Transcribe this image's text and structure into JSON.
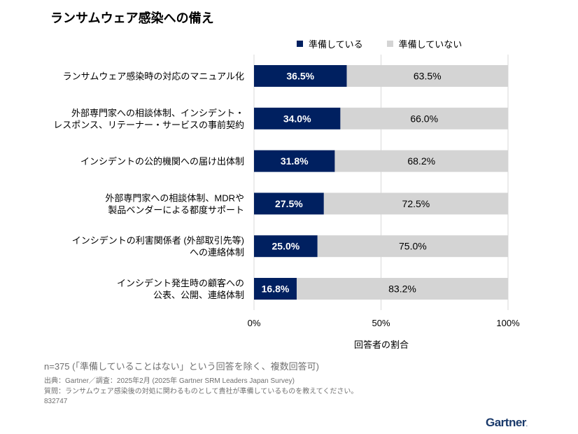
{
  "title": "ランサムウェア感染への備え",
  "legend": [
    {
      "label": "準備している",
      "color": "#002060"
    },
    {
      "label": "準備していない",
      "color": "#d4d4d4"
    }
  ],
  "chart_data": {
    "type": "bar",
    "orientation": "horizontal",
    "stacked": true,
    "title": "ランサムウェア感染への備え",
    "categories": [
      [
        "ランサムウェア感染時の対応のマニュアル化"
      ],
      [
        "外部専門家への相談体制、インシデント・",
        "レスポンス、リテーナー・サービスの事前契約"
      ],
      [
        "インシデントの公的機関への届け出体制"
      ],
      [
        "外部専門家への相談体制、MDRや",
        "製品ベンダーによる都度サポート"
      ],
      [
        "インシデントの利害関係者 (外部取引先等)",
        "への連絡体制"
      ],
      [
        "インシデント発生時の顧客への",
        "公表、公開、連絡体制"
      ]
    ],
    "series": [
      {
        "name": "準備している",
        "color": "#002060",
        "values": [
          36.5,
          34.0,
          31.8,
          27.5,
          25.0,
          16.8
        ],
        "labels": [
          "36.5%",
          "34.0%",
          "31.8%",
          "27.5%",
          "25.0%",
          "16.8%"
        ]
      },
      {
        "name": "準備していない",
        "color": "#d4d4d4",
        "values": [
          63.5,
          66.0,
          68.2,
          72.5,
          75.0,
          83.2
        ],
        "labels": [
          "63.5%",
          "66.0%",
          "68.2%",
          "72.5%",
          "75.0%",
          "83.2%"
        ]
      }
    ],
    "xlabel": "回答者の割合",
    "ylabel": "",
    "xlim": [
      0,
      100
    ],
    "xticks": [
      0,
      50,
      100
    ],
    "xtick_labels": [
      "0%",
      "50%",
      "100%"
    ],
    "grid": true,
    "legend_position": "top-right"
  },
  "footer": {
    "note": "n=375 (「準備していることはない」という回答を除く、複数回答可)",
    "source": "出典：Gartner／調査：2025年2月 (2025年 Gartner SRM Leaders Japan Survey)",
    "question": "質問：ランサムウェア感染後の対処に関わるものとして貴社が準備しているものを教えてください。",
    "id": "832747"
  },
  "brand": {
    "name": "Gartner",
    "dot": "."
  }
}
